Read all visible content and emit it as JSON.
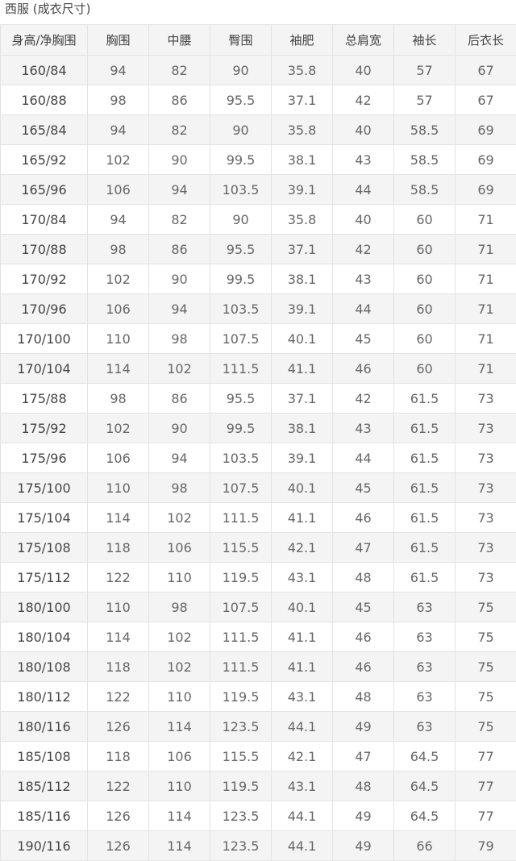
{
  "caption": "西服 (成衣尺寸)",
  "table": {
    "headers": [
      "身高/净胸围",
      "胸围",
      "中腰",
      "臀围",
      "袖肥",
      "总肩宽",
      "袖长",
      "后衣长"
    ],
    "rows": [
      [
        "160/84",
        "94",
        "82",
        "90",
        "35.8",
        "40",
        "57",
        "67"
      ],
      [
        "160/88",
        "98",
        "86",
        "95.5",
        "37.1",
        "42",
        "57",
        "67"
      ],
      [
        "165/84",
        "94",
        "82",
        "90",
        "35.8",
        "40",
        "58.5",
        "69"
      ],
      [
        "165/92",
        "102",
        "90",
        "99.5",
        "38.1",
        "43",
        "58.5",
        "69"
      ],
      [
        "165/96",
        "106",
        "94",
        "103.5",
        "39.1",
        "44",
        "58.5",
        "69"
      ],
      [
        "170/84",
        "94",
        "82",
        "90",
        "35.8",
        "40",
        "60",
        "71"
      ],
      [
        "170/88",
        "98",
        "86",
        "95.5",
        "37.1",
        "42",
        "60",
        "71"
      ],
      [
        "170/92",
        "102",
        "90",
        "99.5",
        "38.1",
        "43",
        "60",
        "71"
      ],
      [
        "170/96",
        "106",
        "94",
        "103.5",
        "39.1",
        "44",
        "60",
        "71"
      ],
      [
        "170/100",
        "110",
        "98",
        "107.5",
        "40.1",
        "45",
        "60",
        "71"
      ],
      [
        "170/104",
        "114",
        "102",
        "111.5",
        "41.1",
        "46",
        "60",
        "71"
      ],
      [
        "175/88",
        "98",
        "86",
        "95.5",
        "37.1",
        "42",
        "61.5",
        "73"
      ],
      [
        "175/92",
        "102",
        "90",
        "99.5",
        "38.1",
        "43",
        "61.5",
        "73"
      ],
      [
        "175/96",
        "106",
        "94",
        "103.5",
        "39.1",
        "44",
        "61.5",
        "73"
      ],
      [
        "175/100",
        "110",
        "98",
        "107.5",
        "40.1",
        "45",
        "61.5",
        "73"
      ],
      [
        "175/104",
        "114",
        "102",
        "111.5",
        "41.1",
        "46",
        "61.5",
        "73"
      ],
      [
        "175/108",
        "118",
        "106",
        "115.5",
        "42.1",
        "47",
        "61.5",
        "73"
      ],
      [
        "175/112",
        "122",
        "110",
        "119.5",
        "43.1",
        "48",
        "61.5",
        "73"
      ],
      [
        "180/100",
        "110",
        "98",
        "107.5",
        "40.1",
        "45",
        "63",
        "75"
      ],
      [
        "180/104",
        "114",
        "102",
        "111.5",
        "41.1",
        "46",
        "63",
        "75"
      ],
      [
        "180/108",
        "118",
        "102",
        "111.5",
        "41.1",
        "46",
        "63",
        "75"
      ],
      [
        "180/112",
        "122",
        "110",
        "119.5",
        "43.1",
        "48",
        "63",
        "75"
      ],
      [
        "180/116",
        "126",
        "114",
        "123.5",
        "44.1",
        "49",
        "63",
        "75"
      ],
      [
        "185/108",
        "118",
        "106",
        "115.5",
        "42.1",
        "47",
        "64.5",
        "77"
      ],
      [
        "185/112",
        "122",
        "110",
        "119.5",
        "43.1",
        "48",
        "64.5",
        "77"
      ],
      [
        "185/116",
        "126",
        "114",
        "123.5",
        "44.1",
        "49",
        "64.5",
        "77"
      ],
      [
        "190/116",
        "126",
        "114",
        "123.5",
        "44.1",
        "49",
        "66",
        "79"
      ]
    ]
  }
}
